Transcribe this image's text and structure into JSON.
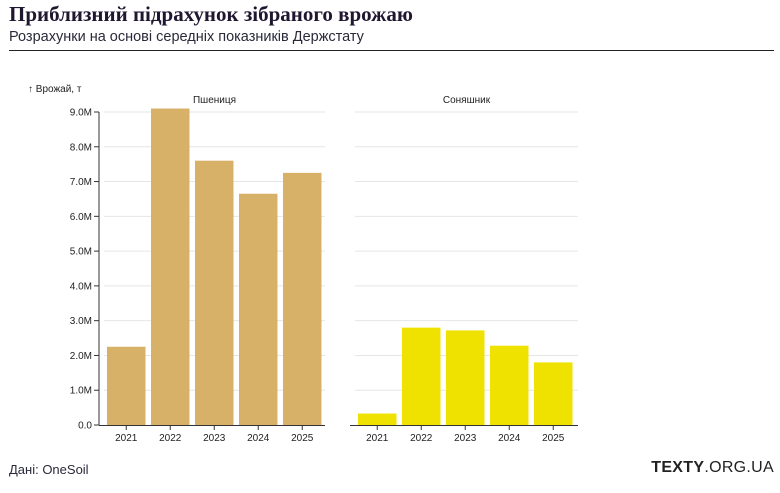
{
  "title": "Приблизний підрахунок зібраного врожаю",
  "subtitle": "Розрахунки на основі середніх показників Держстату",
  "source": "Дані: OneSoil",
  "logo": {
    "bold": "TEXTY",
    "rest": ".ORG.UA"
  },
  "colors": {
    "wheat": "#d8b168",
    "sunflower": "#f0e200",
    "grid": "#e6e6e6",
    "axis": "#333333"
  },
  "chart_data": {
    "type": "bar",
    "ylabel": "↑ Врожай, т",
    "ylim": [
      0,
      9000000
    ],
    "yticks": [
      0,
      1000000,
      2000000,
      3000000,
      4000000,
      5000000,
      6000000,
      7000000,
      8000000,
      9000000
    ],
    "ytick_labels": [
      "0.0",
      "1.0M",
      "2.0M",
      "3.0M",
      "4.0M",
      "5.0M",
      "6.0M",
      "7.0M",
      "8.0M",
      "9.0M"
    ],
    "categories": [
      "2021",
      "2022",
      "2023",
      "2024",
      "2025"
    ],
    "grid": true,
    "series": [
      {
        "name": "Пшениця",
        "color": "#d8b168",
        "values": [
          2250000,
          9100000,
          7600000,
          6650000,
          7250000
        ]
      },
      {
        "name": "Соняшник",
        "color": "#f0e200",
        "values": [
          330000,
          2800000,
          2720000,
          2280000,
          1800000
        ]
      }
    ]
  }
}
